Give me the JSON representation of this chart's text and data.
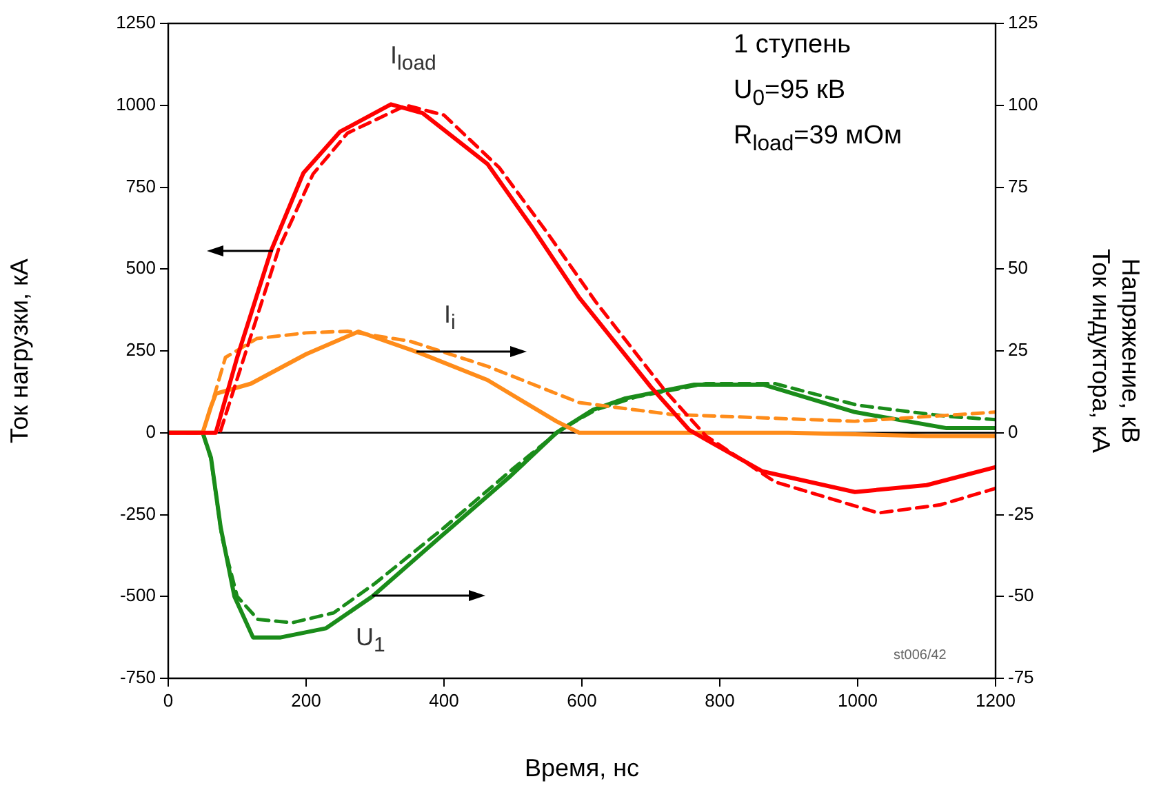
{
  "chart_data": {
    "type": "line",
    "xlabel": "Время, нс",
    "ylabel": "Ток нагрузки, кА",
    "y2label": "Напряжение, кВ\nТок индуктора, кА",
    "xlim": [
      0,
      1200
    ],
    "xticks": [
      0,
      200,
      400,
      600,
      800,
      1000,
      1200
    ],
    "ylim": [
      -750,
      1250
    ],
    "yticks": [
      -750,
      -500,
      -250,
      0,
      250,
      500,
      750,
      1000,
      1250
    ],
    "y2lim": [
      -75,
      125
    ],
    "y2ticks": [
      -75,
      -50,
      -25,
      0,
      25,
      50,
      75,
      100,
      125
    ],
    "grid": false,
    "legend": false,
    "marker": "none",
    "ref_lines": [
      {
        "axis": "y",
        "value": 0,
        "color": "#000000"
      }
    ],
    "annotations": [
      "1 ступень",
      "U$_{0}$=95 кВ",
      "R$_{load}$=39 мОм",
      "st006/42"
    ],
    "series": [
      {
        "name": "I$_{load}$",
        "color": "#ff0000",
        "line_style": "solid",
        "x": [
          0,
          50,
          69,
          100,
          149,
          196,
          249,
          323,
          369,
          463,
          529,
          596,
          700,
          756,
          862,
          996,
          1100,
          1200
        ],
        "values": [
          0,
          0,
          0,
          230,
          555,
          793,
          919,
          1003,
          976,
          821,
          624,
          413,
          140,
          8,
          -118,
          -181,
          -160,
          -105
        ]
      },
      {
        "color": "#ff0000",
        "line_style": "dashed",
        "x": [
          0,
          50,
          75,
          110,
          160,
          210,
          260,
          345,
          400,
          480,
          550,
          620,
          720,
          780,
          880,
          1030,
          1120,
          1200
        ],
        "values": [
          0,
          0,
          0,
          230,
          560,
          790,
          915,
          1000,
          970,
          810,
          610,
          400,
          130,
          -10,
          -150,
          -245,
          -220,
          -170
        ]
      },
      {
        "name": "I$_{i}$",
        "color": "#ff8c1a",
        "line_style": "solid",
        "axis": "y2",
        "x": [
          0,
          50,
          62,
          69,
          120,
          200,
          276,
          363,
          463,
          563,
          596,
          700,
          900,
          1100,
          1200
        ],
        "values": [
          0,
          0,
          8,
          11.9,
          15,
          24,
          30.9,
          24.5,
          16.1,
          3.5,
          0,
          0,
          0,
          -1,
          -1
        ]
      },
      {
        "color": "#ff8c1a",
        "line_style": "dashed",
        "axis": "y2",
        "x": [
          0,
          50,
          65,
          83,
          129,
          200,
          260,
          350,
          463,
          596,
          729,
          996,
          1200
        ],
        "values": [
          0,
          0,
          10,
          23,
          28.8,
          30.5,
          31,
          28,
          20.3,
          9.2,
          5.6,
          3.5,
          6.3
        ]
      },
      {
        "name": "U$_{1}$",
        "color": "#1a8c1a",
        "line_style": "solid",
        "axis": "y2",
        "x": [
          0,
          50,
          62,
          76,
          96,
          123,
          163,
          229,
          296,
          396,
          496,
          563,
          616,
          663,
          763,
          863,
          996,
          1129,
          1200
        ],
        "values": [
          0,
          0,
          -7.6,
          -28.8,
          -50,
          -62.5,
          -62.5,
          -59.7,
          -50,
          -31.6,
          -13.3,
          0,
          7,
          10.5,
          14.7,
          14.7,
          6.3,
          1.4,
          1.4
        ]
      },
      {
        "color": "#1a8c1a",
        "line_style": "dashed",
        "axis": "y2",
        "x": [
          0,
          50,
          62,
          78,
          100,
          130,
          180,
          240,
          300,
          400,
          500,
          570,
          620,
          680,
          780,
          880,
          1000,
          1130,
          1200
        ],
        "values": [
          0,
          0,
          -8,
          -32,
          -50,
          -57,
          -58,
          -55,
          -46,
          -29,
          -11,
          1,
          7,
          11,
          15,
          15,
          8.4,
          5,
          4
        ]
      }
    ]
  }
}
